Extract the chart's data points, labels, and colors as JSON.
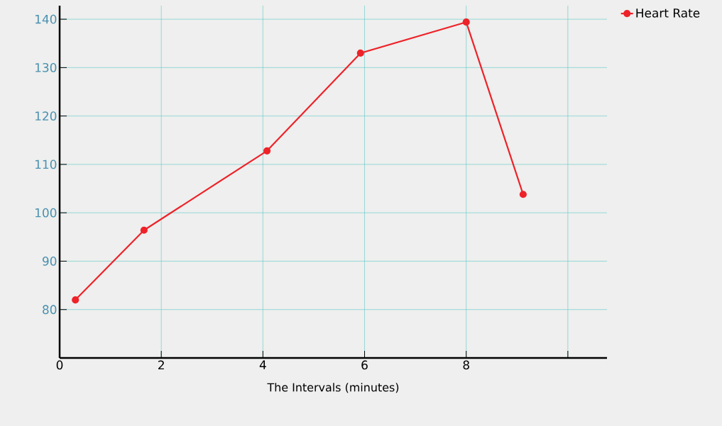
{
  "chart_data": {
    "type": "line",
    "xlabel": "The Intervals (minutes)",
    "x": [
      0.31,
      1.66,
      4.08,
      5.92,
      8.0,
      9.12
    ],
    "series": [
      {
        "name": "Heart Rate",
        "color": "#ee2229",
        "values": [
          82.0,
          96.4,
          112.8,
          133.0,
          139.4,
          103.8
        ]
      }
    ],
    "xlim": [
      0,
      10.77
    ],
    "ylim": [
      70,
      142.8
    ],
    "xticks": [
      0,
      2,
      4,
      6,
      8,
      {
        "value": 10,
        "label": null
      }
    ],
    "yticks": [
      80,
      90,
      100,
      110,
      120,
      130,
      140
    ],
    "grid": true,
    "legend": "top right",
    "marker": "circle",
    "line_style": "solid"
  }
}
